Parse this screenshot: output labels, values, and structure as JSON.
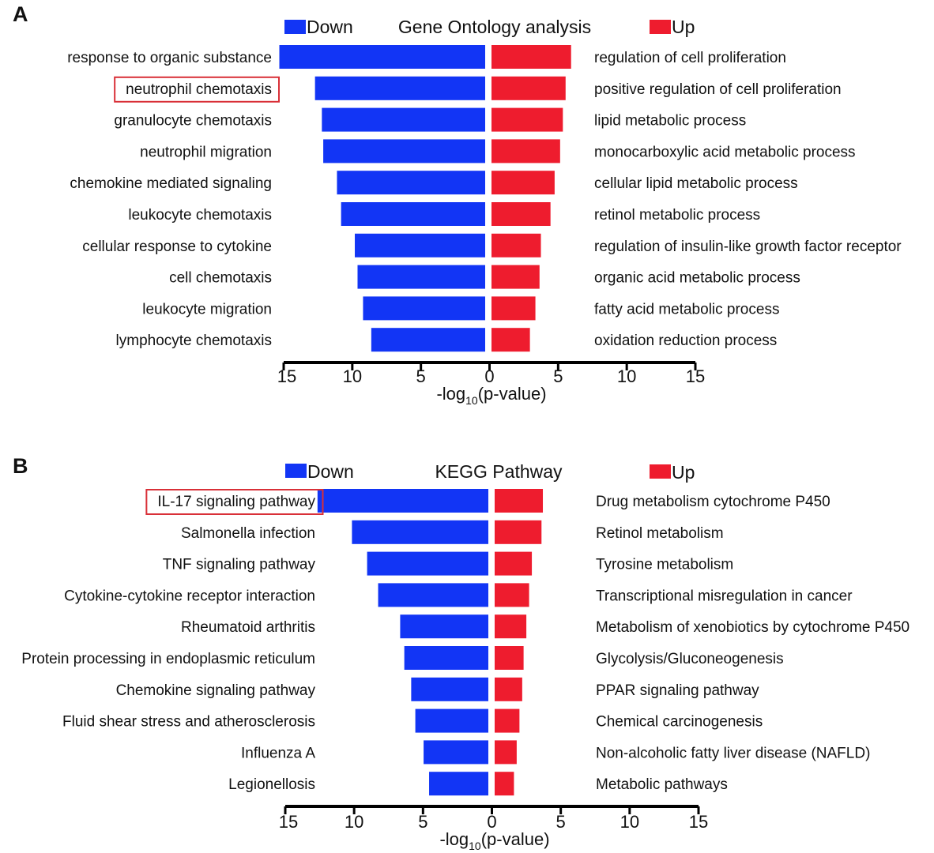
{
  "colors": {
    "down": "#1235F5",
    "up": "#EE1C2E",
    "axis": "#000000",
    "highlight": "#D93038"
  },
  "chart_data": [
    {
      "type": "bar",
      "panel": "A",
      "title": "Gene Ontology analysis",
      "legend": {
        "down": "Down",
        "up": "Up"
      },
      "xlabel": {
        "prefix": "-log",
        "sub": "10",
        "suffix": "(p-value)"
      },
      "xlim": [
        -15,
        15
      ],
      "ticks": [
        -15,
        -10,
        -5,
        0,
        5,
        10,
        15
      ],
      "tick_labels": [
        "15",
        "10",
        "5",
        "0",
        "5",
        "10",
        "15"
      ],
      "down": {
        "categories": [
          "response to organic substance",
          "neutrophil chemotaxis",
          "granulocyte chemotaxis",
          "neutrophil migration",
          "chemokine mediated signaling",
          "leukocyte chemotaxis",
          "cellular response to cytokine",
          "cell chemotaxis",
          "leukocyte migration",
          "lymphocyte chemotaxis"
        ],
        "values": [
          15.0,
          12.4,
          11.9,
          11.8,
          10.8,
          10.5,
          9.5,
          9.3,
          8.9,
          8.3
        ]
      },
      "up": {
        "categories": [
          "regulation of cell proliferation",
          "positive regulation of cell proliferation",
          "lipid metabolic process",
          "monocarboxylic acid metabolic process",
          "cellular lipid metabolic process",
          "retinol metabolic process",
          "regulation of insulin-like growth factor receptor",
          "organic acid metabolic process",
          "fatty acid metabolic process",
          "oxidation reduction process"
        ],
        "values": [
          5.8,
          5.4,
          5.2,
          5.0,
          4.6,
          4.3,
          3.6,
          3.5,
          3.2,
          2.8
        ]
      },
      "highlighted": "neutrophil chemotaxis"
    },
    {
      "type": "bar",
      "panel": "B",
      "title": "KEGG Pathway",
      "legend": {
        "down": "Down",
        "up": "Up"
      },
      "xlabel": {
        "prefix": "-log",
        "sub": "10",
        "suffix": "(p-value)"
      },
      "xlim": [
        -15,
        15
      ],
      "ticks": [
        -15,
        -10,
        -5,
        0,
        5,
        10,
        15
      ],
      "tick_labels": [
        "15",
        "10",
        "5",
        "0",
        "5",
        "10",
        "15"
      ],
      "down": {
        "categories": [
          "IL-17 signaling pathway",
          "Salmonella infection",
          "TNF signaling pathway",
          "Cytokine-cytokine receptor interaction",
          "Rheumatoid arthritis",
          "Protein processing in endoplasmic reticulum",
          "Chemokine signaling pathway",
          "Fluid shear stress and atherosclerosis",
          "Influenza A",
          "Legionellosis"
        ],
        "values": [
          12.4,
          9.9,
          8.8,
          8.0,
          6.4,
          6.1,
          5.6,
          5.3,
          4.7,
          4.3
        ]
      },
      "up": {
        "categories": [
          "Drug metabolism cytochrome P450",
          "Retinol metabolism",
          "Tyrosine metabolism",
          "Transcriptional misregulation in cancer",
          "Metabolism of xenobiotics by cytochrome P450",
          "Glycolysis/Gluconeogenesis",
          "PPAR signaling pathway",
          "Chemical carcinogenesis",
          "Non-alcoholic fatty liver disease (NAFLD)",
          "Metabolic pathways"
        ],
        "values": [
          3.5,
          3.4,
          2.7,
          2.5,
          2.3,
          2.1,
          2.0,
          1.8,
          1.6,
          1.4
        ]
      },
      "highlighted": "IL-17 signaling pathway"
    }
  ]
}
